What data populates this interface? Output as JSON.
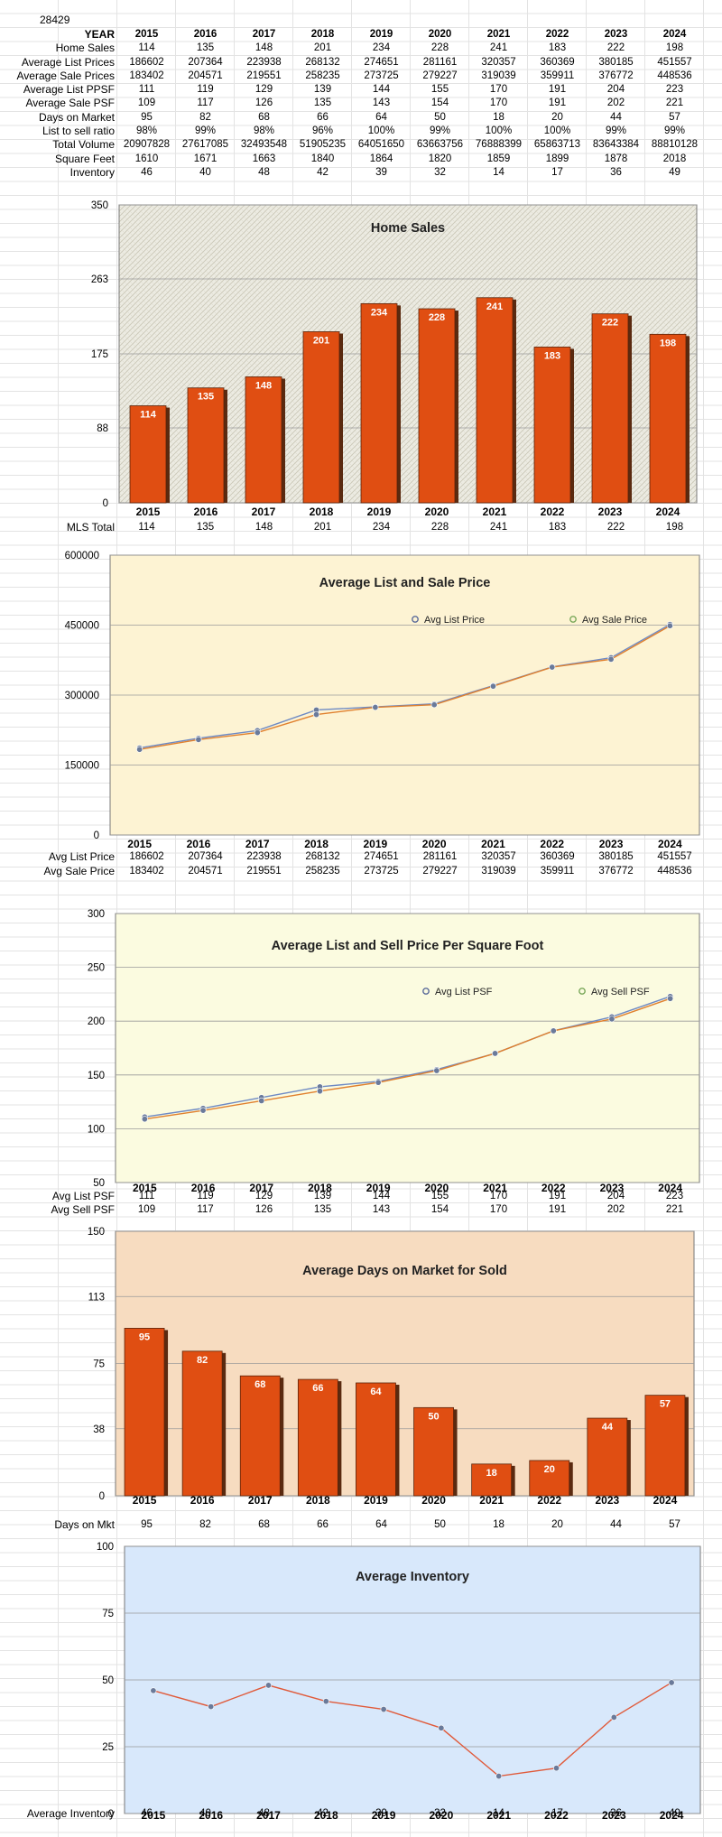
{
  "zip": "28429",
  "table": {
    "header_label": "YEAR",
    "years": [
      "2015",
      "2016",
      "2017",
      "2018",
      "2019",
      "2020",
      "2021",
      "2022",
      "2023",
      "2024"
    ],
    "rows": [
      {
        "label": "Home Sales",
        "values": [
          "114",
          "135",
          "148",
          "201",
          "234",
          "228",
          "241",
          "183",
          "222",
          "198"
        ]
      },
      {
        "label": "Average List Prices",
        "values": [
          "186602",
          "207364",
          "223938",
          "268132",
          "274651",
          "281161",
          "320357",
          "360369",
          "380185",
          "451557"
        ]
      },
      {
        "label": "Average Sale Prices",
        "values": [
          "183402",
          "204571",
          "219551",
          "258235",
          "273725",
          "279227",
          "319039",
          "359911",
          "376772",
          "448536"
        ]
      },
      {
        "label": "Average List PPSF",
        "values": [
          "111",
          "119",
          "129",
          "139",
          "144",
          "155",
          "170",
          "191",
          "204",
          "223"
        ]
      },
      {
        "label": "Average Sale PSF",
        "values": [
          "109",
          "117",
          "126",
          "135",
          "143",
          "154",
          "170",
          "191",
          "202",
          "221"
        ]
      },
      {
        "label": "Days on Market",
        "values": [
          "95",
          "82",
          "68",
          "66",
          "64",
          "50",
          "18",
          "20",
          "44",
          "57"
        ]
      },
      {
        "label": "List to sell ratio",
        "values": [
          "98%",
          "99%",
          "98%",
          "96%",
          "100%",
          "99%",
          "100%",
          "100%",
          "99%",
          "99%"
        ]
      },
      {
        "label": "Total Volume",
        "values": [
          "20907828",
          "27617085",
          "32493548",
          "51905235",
          "64051650",
          "63663756",
          "76888399",
          "65863713",
          "83643384",
          "88810128"
        ]
      },
      {
        "label": "Square Feet",
        "values": [
          "1610",
          "1671",
          "1663",
          "1840",
          "1864",
          "1820",
          "1859",
          "1899",
          "1878",
          "2018"
        ]
      },
      {
        "label": "Inventory",
        "values": [
          "46",
          "40",
          "48",
          "42",
          "39",
          "32",
          "14",
          "17",
          "36",
          "49"
        ]
      }
    ]
  },
  "colors": {
    "bar": "#e04e12",
    "line_list": "#6e8ac4",
    "line_sale": "#e0802e",
    "inv_line": "#e05a3a",
    "dot": "#6a7a9a"
  },
  "chart_data": [
    {
      "type": "bar",
      "title": "Home Sales",
      "categories": [
        "2015",
        "2016",
        "2017",
        "2018",
        "2019",
        "2020",
        "2021",
        "2022",
        "2023",
        "2024"
      ],
      "values": [
        114,
        135,
        148,
        201,
        234,
        228,
        241,
        183,
        222,
        198
      ],
      "yticks": [
        "0",
        "88",
        "175",
        "263",
        "350"
      ],
      "ylim": [
        0,
        350
      ],
      "table_row": {
        "label": "MLS Total",
        "values": [
          "114",
          "135",
          "148",
          "201",
          "234",
          "228",
          "241",
          "183",
          "222",
          "198"
        ]
      }
    },
    {
      "type": "line",
      "title": "Average List and Sale Price",
      "categories": [
        "2015",
        "2016",
        "2017",
        "2018",
        "2019",
        "2020",
        "2021",
        "2022",
        "2023",
        "2024"
      ],
      "series": [
        {
          "name": "Avg List Price",
          "values": [
            186602,
            207364,
            223938,
            268132,
            274651,
            281161,
            320357,
            360369,
            380185,
            451557
          ]
        },
        {
          "name": "Avg Sale Price",
          "values": [
            183402,
            204571,
            219551,
            258235,
            273725,
            279227,
            319039,
            359911,
            376772,
            448536
          ]
        }
      ],
      "yticks": [
        "0",
        "150000",
        "300000",
        "450000",
        "600000"
      ],
      "ylim": [
        0,
        600000
      ],
      "table_rows": [
        {
          "label": "Avg List Price",
          "values": [
            "186602",
            "207364",
            "223938",
            "268132",
            "274651",
            "281161",
            "320357",
            "360369",
            "380185",
            "451557"
          ]
        },
        {
          "label": "Avg Sale Price",
          "values": [
            "183402",
            "204571",
            "219551",
            "258235",
            "273725",
            "279227",
            "319039",
            "359911",
            "376772",
            "448536"
          ]
        }
      ]
    },
    {
      "type": "line",
      "title": "Average List and Sell Price Per Square Foot",
      "categories": [
        "2015",
        "2016",
        "2017",
        "2018",
        "2019",
        "2020",
        "2021",
        "2022",
        "2023",
        "2024"
      ],
      "series": [
        {
          "name": "Avg List PSF",
          "values": [
            111,
            119,
            129,
            139,
            144,
            155,
            170,
            191,
            204,
            223
          ]
        },
        {
          "name": "Avg Sell PSF",
          "values": [
            109,
            117,
            126,
            135,
            143,
            154,
            170,
            191,
            202,
            221
          ]
        }
      ],
      "yticks": [
        "50",
        "100",
        "150",
        "200",
        "250",
        "300"
      ],
      "ylim": [
        50,
        300
      ],
      "table_rows": [
        {
          "label": "Avg List PSF",
          "values": [
            "111",
            "119",
            "129",
            "139",
            "144",
            "155",
            "170",
            "191",
            "204",
            "223"
          ]
        },
        {
          "label": "Avg Sell PSF",
          "values": [
            "109",
            "117",
            "126",
            "135",
            "143",
            "154",
            "170",
            "191",
            "202",
            "221"
          ]
        }
      ]
    },
    {
      "type": "bar",
      "title": "Average Days on Market for Sold",
      "categories": [
        "2015",
        "2016",
        "2017",
        "2018",
        "2019",
        "2020",
        "2021",
        "2022",
        "2023",
        "2024"
      ],
      "values": [
        95,
        82,
        68,
        66,
        64,
        50,
        18,
        20,
        44,
        57
      ],
      "yticks": [
        "0",
        "38",
        "75",
        "113",
        "150"
      ],
      "ylim": [
        0,
        150
      ],
      "table_row": {
        "label": "Days on Mkt",
        "values": [
          "95",
          "82",
          "68",
          "66",
          "64",
          "50",
          "18",
          "20",
          "44",
          "57"
        ]
      }
    },
    {
      "type": "line",
      "title": "Average Inventory",
      "categories": [
        "2015",
        "2016",
        "2017",
        "2018",
        "2019",
        "2020",
        "2021",
        "2022",
        "2023",
        "2024"
      ],
      "series": [
        {
          "values": [
            46,
            40,
            48,
            42,
            39,
            32,
            14,
            17,
            36,
            49
          ]
        }
      ],
      "yticks": [
        "0",
        "25",
        "50",
        "75",
        "100"
      ],
      "ylim": [
        0,
        100
      ],
      "table_row": {
        "label": "Average Inventory",
        "values": [
          "46",
          "40",
          "48",
          "42",
          "39",
          "32",
          "14",
          "17",
          "36",
          "49"
        ]
      }
    }
  ]
}
